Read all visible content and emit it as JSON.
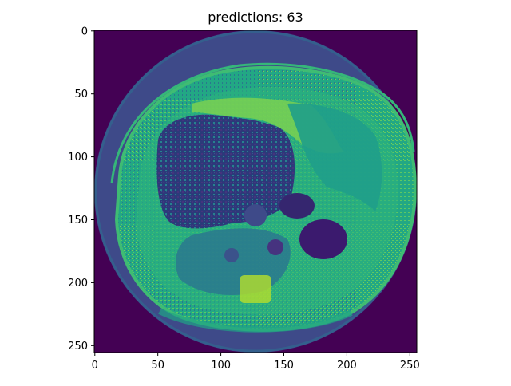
{
  "figure": {
    "title": "predictions: 63"
  },
  "axes": {
    "x_ticks": [
      0,
      50,
      100,
      150,
      200,
      250
    ],
    "y_ticks": [
      0,
      50,
      100,
      150,
      200,
      250
    ],
    "x_range": [
      0,
      255
    ],
    "y_range": [
      0,
      255
    ],
    "y_inverted": true
  },
  "image": {
    "description_icon": "ct-slice-image",
    "colormap": "viridis",
    "colors": {
      "background": "#440154",
      "tissue_low": "#31688e",
      "tissue_mid": "#21918c",
      "tissue_high": "#5ec962",
      "tissue_peak": "#b5de2b",
      "organ_dark": "#3b1a6e"
    }
  }
}
